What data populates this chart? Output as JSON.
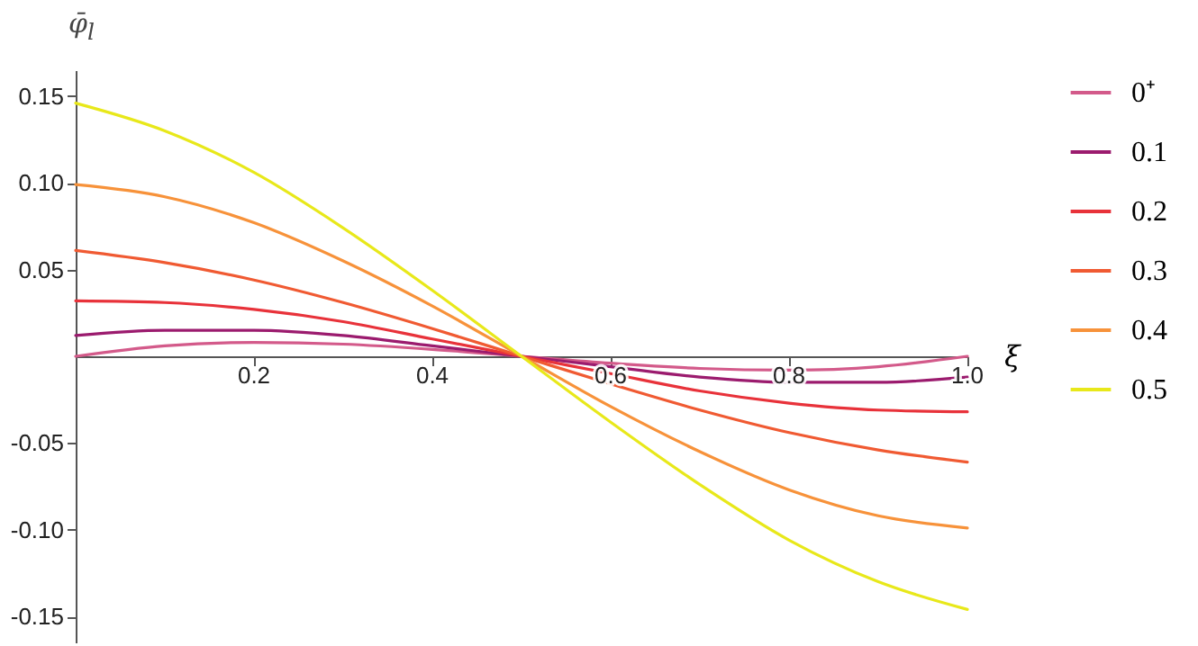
{
  "chart_data": {
    "type": "line",
    "xlabel": "ξ",
    "ylabel": "φ̄$_{l}$",
    "x": [
      0,
      0.1,
      0.2,
      0.3,
      0.4,
      0.5,
      0.6,
      0.7,
      0.8,
      0.9,
      1.0
    ],
    "xlim": [
      0,
      1
    ],
    "xticks": [
      0.2,
      0.4,
      0.6,
      0.8,
      {
        "value": 1,
        "label": "1.0"
      }
    ],
    "ylim": [
      -0.165,
      0.165
    ],
    "yticks": [
      {
        "value": -0.15,
        "label": "-0.15"
      },
      {
        "value": -0.1,
        "label": "-0.10"
      },
      {
        "value": -0.05,
        "label": "-0.05"
      },
      {
        "value": 0.05,
        "label": "0.05"
      },
      {
        "value": 0.1,
        "label": "0.10"
      },
      {
        "value": 0.15,
        "label": "0.15"
      }
    ],
    "legend": "right",
    "grid": false,
    "line_style": "solid",
    "marker": "none",
    "series": [
      {
        "name": "0⁺",
        "color": "#d35a8a",
        "values": [
          0,
          0.006,
          0.008,
          0.007,
          0.004,
          0,
          -0.004,
          -0.007,
          -0.008,
          -0.006,
          0
        ]
      },
      {
        "name": "0.1",
        "color": "#9b1b6e",
        "values": [
          0.012,
          0.015,
          0.015,
          0.012,
          0.006,
          0,
          -0.006,
          -0.012,
          -0.015,
          -0.015,
          -0.012
        ]
      },
      {
        "name": "0.2",
        "color": "#e8323a",
        "values": [
          0.032,
          0.031,
          0.027,
          0.02,
          0.01,
          0,
          -0.01,
          -0.02,
          -0.027,
          -0.031,
          -0.032
        ]
      },
      {
        "name": "0.3",
        "color": "#f05a32",
        "values": [
          0.061,
          0.054,
          0.044,
          0.031,
          0.016,
          0,
          -0.016,
          -0.031,
          -0.044,
          -0.054,
          -0.061
        ]
      },
      {
        "name": "0.4",
        "color": "#f7923a",
        "values": [
          0.099,
          0.092,
          0.077,
          0.055,
          0.029,
          0,
          -0.029,
          -0.055,
          -0.077,
          -0.092,
          -0.099
        ]
      },
      {
        "name": "0.5",
        "color": "#e8e81a",
        "values": [
          0.146,
          0.13,
          0.106,
          0.074,
          0.038,
          0,
          -0.038,
          -0.074,
          -0.106,
          -0.13,
          -0.146
        ]
      }
    ]
  }
}
